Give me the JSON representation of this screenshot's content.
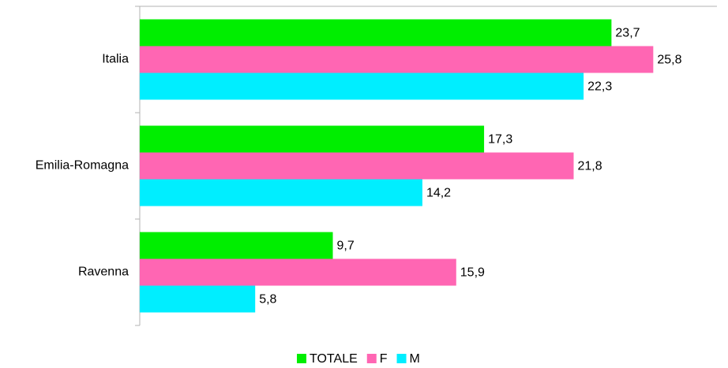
{
  "chart_data": {
    "type": "hbar",
    "categories": [
      "Italia",
      "Emilia-Romagna",
      "Ravenna"
    ],
    "series": [
      {
        "name": "TOTALE",
        "color": "#00ee00",
        "values": [
          23.7,
          17.3,
          9.7
        ],
        "value_labels": [
          "23,7",
          "17,3",
          "9,7"
        ]
      },
      {
        "name": "F",
        "color": "#ff66b3",
        "values": [
          25.8,
          21.8,
          15.9
        ],
        "value_labels": [
          "25,8",
          "21,8",
          "15,9"
        ]
      },
      {
        "name": "M",
        "color": "#00eeff",
        "values": [
          22.3,
          14.2,
          5.8
        ],
        "value_labels": [
          "22,3",
          "14,2",
          "5,8"
        ]
      }
    ],
    "xlim": [
      0,
      29
    ],
    "legend": "bottom"
  }
}
